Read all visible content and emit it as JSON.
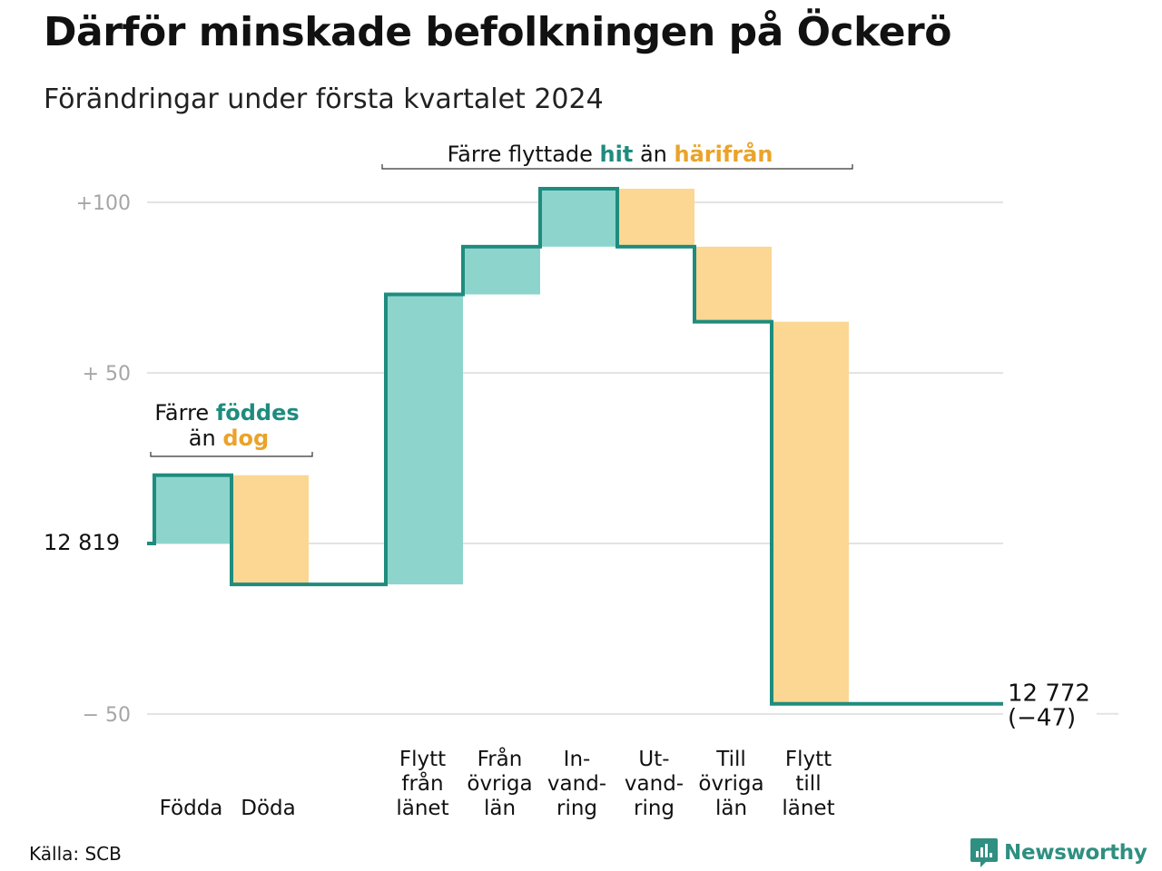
{
  "header": {
    "title": "Därför minskade befolkningen på Öckerö",
    "subtitle": "Förändringar under första kvartalet 2024"
  },
  "annotations": {
    "born_died": {
      "line1_prefix": "Färre ",
      "line1_highlight": "föddes",
      "line2_prefix": "än ",
      "line2_highlight": "dog"
    },
    "moves": {
      "prefix": "Färre flyttade ",
      "highlight1": "hit",
      "middle": " än ",
      "highlight2": "härifrån"
    }
  },
  "chart_data": {
    "type": "waterfall",
    "start": {
      "value": 12819,
      "label": "12 819"
    },
    "end": {
      "value": 12772,
      "label": "12 772",
      "change_label": "(−47)",
      "change": -47
    },
    "yaxis": {
      "ticks": [
        100,
        50,
        -50
      ],
      "tick_labels": [
        "+100",
        "+  50",
        "−  50"
      ],
      "ylim": [
        -50,
        100
      ]
    },
    "steps": [
      {
        "category": "Födda",
        "change": 20
      },
      {
        "category": "Döda",
        "change": -32
      },
      {
        "category": "",
        "change": 0
      },
      {
        "category": "Flytt från länet",
        "change": 85
      },
      {
        "category": "Från övriga län",
        "change": 14
      },
      {
        "category": "In-vand-ring",
        "change": 17
      },
      {
        "category": "Ut-vand-ring",
        "change": -17
      },
      {
        "category": "Till övriga län",
        "change": -22
      },
      {
        "category": "Flytt till länet",
        "change": -112
      },
      {
        "category": "",
        "change": 0
      }
    ],
    "category_labels": [
      {
        "lines": [
          "Födda"
        ]
      },
      {
        "lines": [
          "Döda"
        ]
      },
      {
        "lines": [
          "Flytt",
          "från",
          "länet"
        ]
      },
      {
        "lines": [
          "Från",
          "övriga",
          "län"
        ]
      },
      {
        "lines": [
          "In-",
          "vand-",
          "ring"
        ]
      },
      {
        "lines": [
          "Ut-",
          "vand-",
          "ring"
        ]
      },
      {
        "lines": [
          "Till",
          "övriga",
          "län"
        ]
      },
      {
        "lines": [
          "Flytt",
          "till",
          "länet"
        ]
      }
    ],
    "colors": {
      "increase": "#8dd5cc",
      "decrease": "#fbd793",
      "line": "#1e8c7e",
      "grid": "#e3e3e3",
      "highlight_increase": "#1e8c7e",
      "highlight_decrease": "#eaa32a"
    }
  },
  "footer": {
    "source": "Källa: SCB",
    "brand": "Newsworthy",
    "brand_icon": "chart-bars-icon"
  }
}
